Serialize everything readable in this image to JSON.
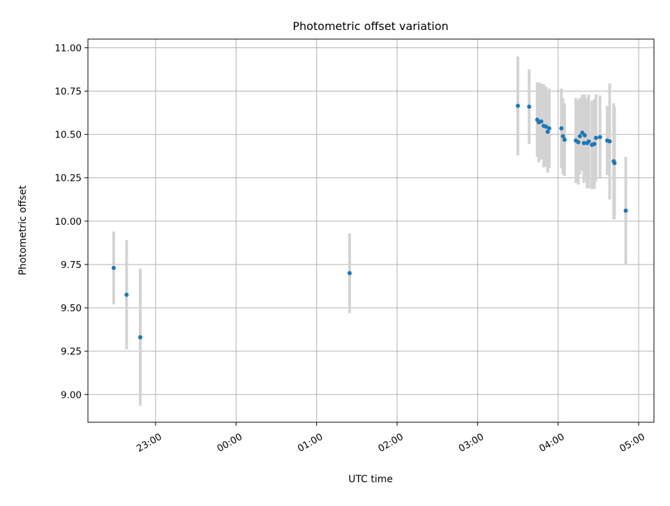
{
  "chart_data": {
    "type": "scatter",
    "title": "Photometric offset variation",
    "xlabel": "UTC time",
    "ylabel": "Photometric offset",
    "x_unit": "UTC clock time (hours past midnight; hours after 24:00 are the following day)",
    "xlim": [
      22.16,
      29.19
    ],
    "ylim": [
      8.84,
      11.05
    ],
    "grid": true,
    "legend": "none",
    "x_ticks": [
      {
        "value": 23,
        "label": "23:00"
      },
      {
        "value": 24,
        "label": "00:00"
      },
      {
        "value": 25,
        "label": "01:00"
      },
      {
        "value": 26,
        "label": "02:00"
      },
      {
        "value": 27,
        "label": "03:00"
      },
      {
        "value": 28,
        "label": "04:00"
      },
      {
        "value": 29,
        "label": "05:00"
      }
    ],
    "y_ticks": [
      {
        "value": 9.0,
        "label": "9.00"
      },
      {
        "value": 9.25,
        "label": "9.25"
      },
      {
        "value": 9.5,
        "label": "9.50"
      },
      {
        "value": 9.75,
        "label": "9.75"
      },
      {
        "value": 10.0,
        "label": "10.00"
      },
      {
        "value": 10.25,
        "label": "10.25"
      },
      {
        "value": 10.5,
        "label": "10.50"
      },
      {
        "value": 10.75,
        "label": "10.75"
      },
      {
        "value": 11.0,
        "label": "11.00"
      }
    ],
    "colors": {
      "point": "#1f77b4",
      "errorbar": "#d3d3d3",
      "grid": "#b0b0b0"
    },
    "series": [
      {
        "points": [
          {
            "x": 22.48,
            "y": 9.73,
            "yerr": 0.21
          },
          {
            "x": 22.64,
            "y": 9.575,
            "yerr": 0.315
          },
          {
            "x": 22.81,
            "y": 9.33,
            "yerr": 0.395
          },
          {
            "x": 25.41,
            "y": 9.7,
            "yerr": 0.23
          },
          {
            "x": 27.5,
            "y": 10.665,
            "yerr": 0.285
          },
          {
            "x": 27.64,
            "y": 10.66,
            "yerr": 0.215
          },
          {
            "x": 27.74,
            "y": 10.585,
            "yerr": 0.215
          },
          {
            "x": 27.76,
            "y": 10.57,
            "yerr": 0.23
          },
          {
            "x": 27.79,
            "y": 10.575,
            "yerr": 0.22
          },
          {
            "x": 27.82,
            "y": 10.55,
            "yerr": 0.24
          },
          {
            "x": 27.85,
            "y": 10.545,
            "yerr": 0.23
          },
          {
            "x": 27.87,
            "y": 10.515,
            "yerr": 0.235
          },
          {
            "x": 27.89,
            "y": 10.535,
            "yerr": 0.23
          },
          {
            "x": 28.04,
            "y": 10.535,
            "yerr": 0.23
          },
          {
            "x": 28.06,
            "y": 10.49,
            "yerr": 0.22
          },
          {
            "x": 28.08,
            "y": 10.47,
            "yerr": 0.21
          },
          {
            "x": 28.22,
            "y": 10.465,
            "yerr": 0.245
          },
          {
            "x": 28.25,
            "y": 10.455,
            "yerr": 0.245
          },
          {
            "x": 28.27,
            "y": 10.49,
            "yerr": 0.22
          },
          {
            "x": 28.3,
            "y": 10.51,
            "yerr": 0.22
          },
          {
            "x": 28.32,
            "y": 10.45,
            "yerr": 0.23
          },
          {
            "x": 28.33,
            "y": 10.495,
            "yerr": 0.235
          },
          {
            "x": 28.36,
            "y": 10.45,
            "yerr": 0.26
          },
          {
            "x": 28.38,
            "y": 10.46,
            "yerr": 0.27
          },
          {
            "x": 28.42,
            "y": 10.44,
            "yerr": 0.255
          },
          {
            "x": 28.45,
            "y": 10.445,
            "yerr": 0.26
          },
          {
            "x": 28.47,
            "y": 10.48,
            "yerr": 0.25
          },
          {
            "x": 28.52,
            "y": 10.485,
            "yerr": 0.24
          },
          {
            "x": 28.61,
            "y": 10.465,
            "yerr": 0.2
          },
          {
            "x": 28.64,
            "y": 10.46,
            "yerr": 0.335
          },
          {
            "x": 28.69,
            "y": 10.345,
            "yerr": 0.335
          },
          {
            "x": 28.7,
            "y": 10.335,
            "yerr": 0.325
          },
          {
            "x": 28.84,
            "y": 10.06,
            "yerr": 0.31
          }
        ]
      }
    ]
  }
}
